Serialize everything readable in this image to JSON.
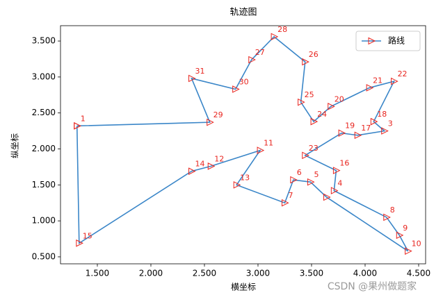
{
  "chart_data": {
    "type": "line",
    "title": "轨迹图",
    "x_label": "横坐标",
    "y_label": "纵坐标",
    "xlim": [
      1.156,
      4.565
    ],
    "ylim": [
      0.403,
      3.713
    ],
    "xticks": [
      {
        "value": 1.5,
        "label": "1.500"
      },
      {
        "value": 2.0,
        "label": "2.000"
      },
      {
        "value": 2.5,
        "label": "2.500"
      },
      {
        "value": 3.0,
        "label": "3.000"
      },
      {
        "value": 3.5,
        "label": "3.500"
      },
      {
        "value": 4.0,
        "label": "4.000"
      },
      {
        "value": 4.5,
        "label": "4.500"
      }
    ],
    "yticks": [
      {
        "value": 0.5,
        "label": "0.500"
      },
      {
        "value": 1.0,
        "label": "1.000"
      },
      {
        "value": 1.5,
        "label": "1.500"
      },
      {
        "value": 2.0,
        "label": "2.000"
      },
      {
        "value": 2.5,
        "label": "2.500"
      },
      {
        "value": 3.0,
        "label": "3.000"
      },
      {
        "value": 3.5,
        "label": "3.500"
      }
    ],
    "legend": "upper right",
    "series": [
      {
        "name": "路线",
        "color": "#3a86c8",
        "marker_color": "#e8251f",
        "x": [
          1.31,
          1.33,
          2.38,
          2.56,
          3.02,
          2.8,
          3.25,
          3.33,
          3.49,
          3.64,
          4.4,
          4.32,
          4.2,
          3.71,
          3.73,
          3.44,
          3.78,
          3.93,
          4.18,
          4.08,
          4.27,
          4.04,
          3.68,
          3.52,
          3.4,
          3.44,
          3.15,
          2.94,
          2.79,
          2.38,
          2.55,
          1.31
        ],
        "values": [
          2.32,
          0.69,
          1.69,
          1.76,
          1.98,
          1.5,
          1.25,
          1.57,
          1.54,
          1.33,
          0.58,
          0.8,
          1.05,
          1.42,
          1.7,
          1.91,
          2.22,
          2.19,
          2.25,
          2.38,
          2.94,
          2.85,
          2.59,
          2.38,
          2.65,
          3.21,
          3.56,
          3.24,
          2.83,
          2.98,
          2.37,
          2.32
        ],
        "point_labels": [
          "1",
          "15",
          "14",
          "12",
          "11",
          "13",
          "7",
          "6",
          "5",
          null,
          "10",
          "9",
          "8",
          "4",
          "16",
          "23",
          "19",
          "17",
          "3",
          "18",
          "22",
          "21",
          "20",
          "24",
          "25",
          "26",
          "28",
          "27",
          "30",
          "31",
          "29",
          null
        ]
      }
    ]
  },
  "watermark": "CSDN @果州做题家"
}
